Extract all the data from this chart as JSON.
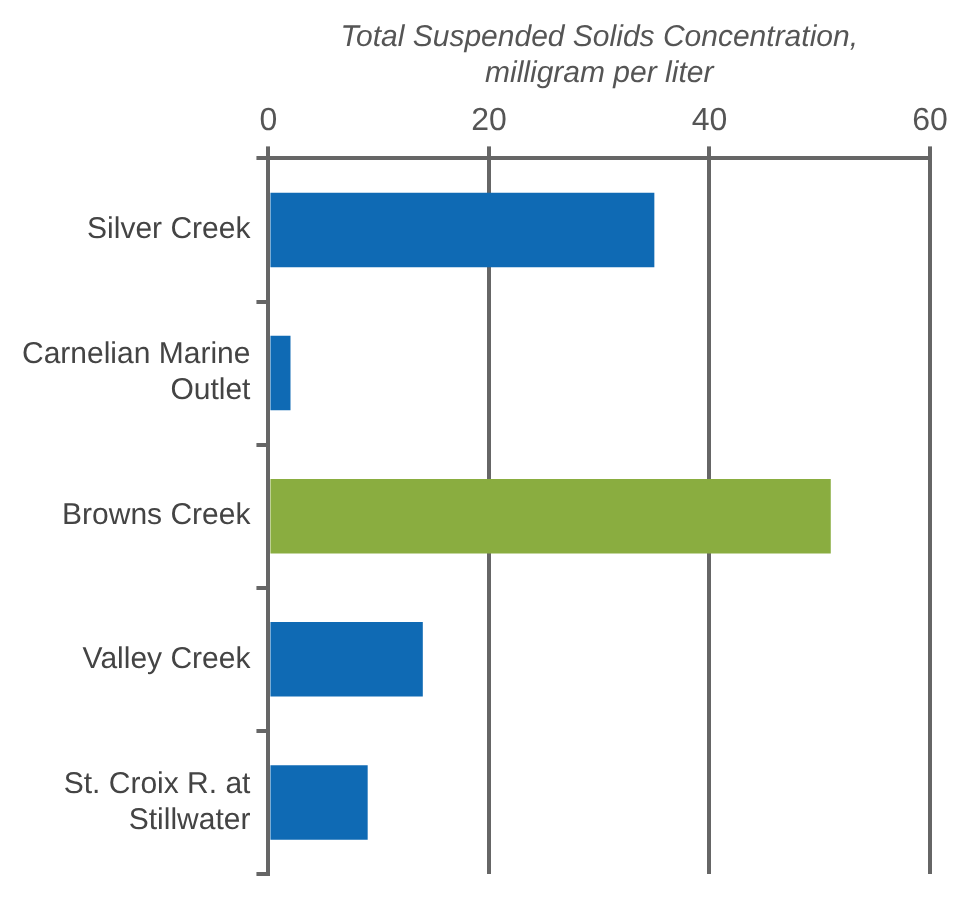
{
  "chart_data": {
    "type": "bar",
    "orientation": "horizontal",
    "xlabel": "Total Suspended Solids Concentration, milligram per liter",
    "categories": [
      "Silver Creek",
      "Carnelian Marine Outlet",
      "Browns Creek",
      "Valley Creek",
      "St. Croix R. at Stillwater"
    ],
    "values": [
      35,
      2,
      51,
      14,
      9
    ],
    "colors": [
      "#0f6ab4",
      "#0f6ab4",
      "#8aad40",
      "#0f6ab4",
      "#0f6ab4"
    ],
    "xlim": [
      0,
      60
    ],
    "xticks": [
      0,
      20,
      40,
      60
    ],
    "grid": "x",
    "legend": false
  }
}
